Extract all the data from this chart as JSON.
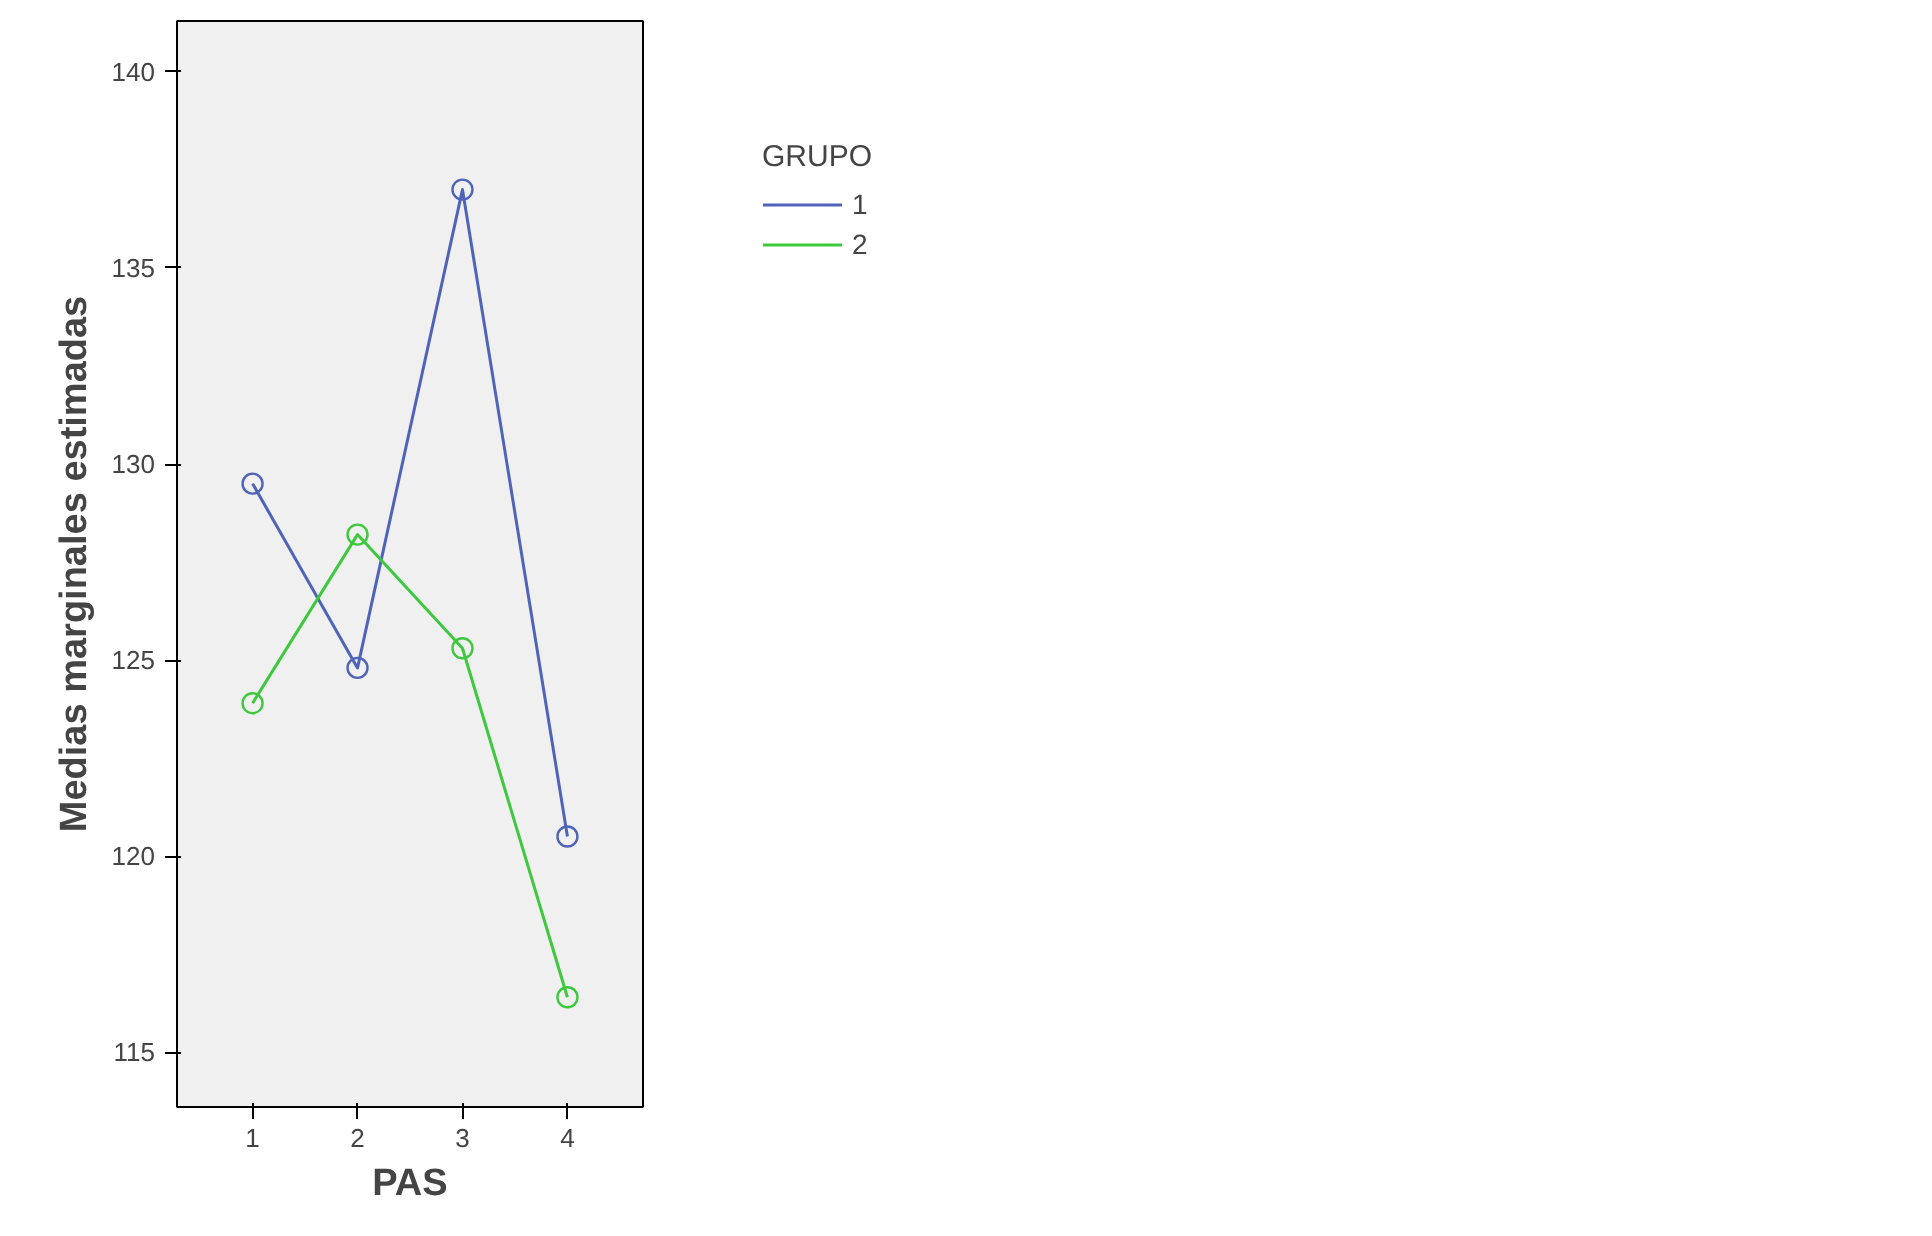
{
  "chart_data": {
    "type": "line",
    "xlabel": "PAS",
    "ylabel": "Medias marginales estimadas",
    "legend_title": "GRUPO",
    "categories": [
      "1",
      "2",
      "3",
      "4"
    ],
    "series": [
      {
        "name": "1",
        "color": "#4f63b8",
        "values": [
          129.5,
          124.8,
          137.0,
          120.5
        ]
      },
      {
        "name": "2",
        "color": "#3ec83e",
        "values": [
          123.9,
          128.2,
          125.3,
          116.4
        ]
      }
    ],
    "ylim": [
      113.6,
      141.3
    ],
    "yticks": [
      115,
      120,
      125,
      130,
      135,
      140
    ],
    "grid": false,
    "legend": "top right",
    "marker": "circle",
    "line_style": "solid"
  }
}
